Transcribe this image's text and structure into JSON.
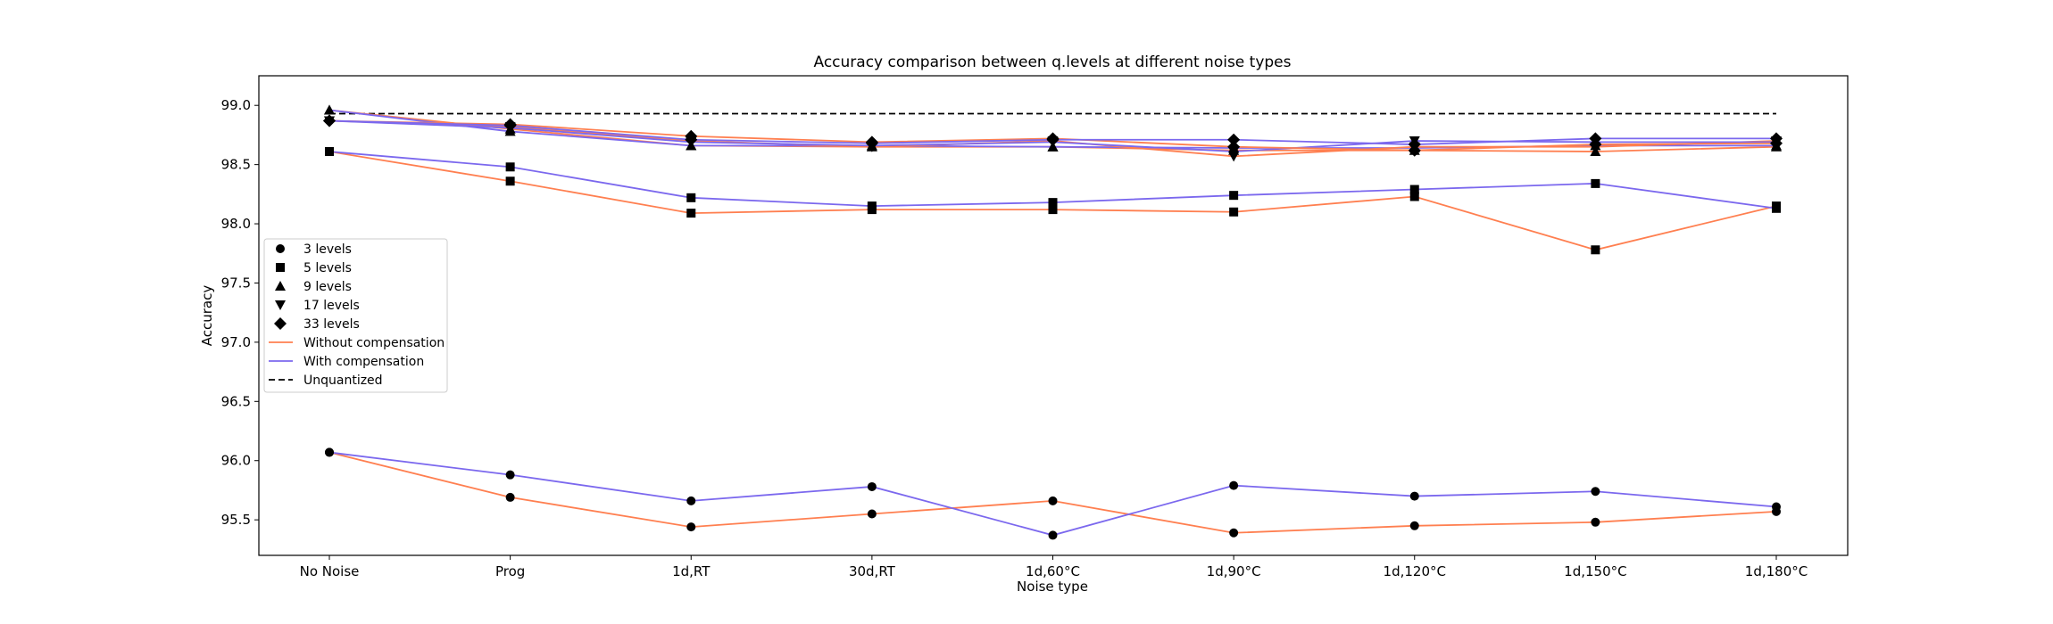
{
  "chart_data": {
    "type": "line",
    "title": "Accuracy comparison between q.levels at different noise types",
    "xlabel": "Noise type",
    "ylabel": "Accuracy",
    "ylim": [
      95.2,
      99.25
    ],
    "yticks": [
      "95.5",
      "96.0",
      "96.5",
      "97.0",
      "97.5",
      "98.0",
      "98.5",
      "99.0"
    ],
    "categories": [
      "No Noise",
      "Prog",
      "1d,RT",
      "30d,RT",
      "1d,60°C",
      "1d,90°C",
      "1d,120°C",
      "1d,150°C",
      "1d,180°C"
    ],
    "grid": false,
    "legend_position": "center-left",
    "colors": {
      "without": "#ff7f50",
      "with": "#7b68ee",
      "unquantized": "#000000",
      "marker": "#000000"
    },
    "legend": [
      {
        "label": "3 levels",
        "kind": "marker",
        "marker": "circle"
      },
      {
        "label": "5 levels",
        "kind": "marker",
        "marker": "square"
      },
      {
        "label": "9 levels",
        "kind": "marker",
        "marker": "triangle-up"
      },
      {
        "label": "17 levels",
        "kind": "marker",
        "marker": "triangle-down"
      },
      {
        "label": "33 levels",
        "kind": "marker",
        "marker": "diamond"
      },
      {
        "label": "Without compensation",
        "kind": "line",
        "style": "without"
      },
      {
        "label": "With compensation",
        "kind": "line",
        "style": "with"
      },
      {
        "label": "Unquantized",
        "kind": "dashed",
        "style": "unquantized"
      }
    ],
    "series": [
      {
        "levels": 3,
        "compensation": "without",
        "marker": "circle",
        "values": [
          96.07,
          95.69,
          95.44,
          95.55,
          95.66,
          95.39,
          95.45,
          95.48,
          95.57
        ]
      },
      {
        "levels": 3,
        "compensation": "with",
        "marker": "circle",
        "values": [
          96.07,
          95.88,
          95.66,
          95.78,
          95.37,
          95.79,
          95.7,
          95.74,
          95.61
        ]
      },
      {
        "levels": 5,
        "compensation": "without",
        "marker": "square",
        "values": [
          98.61,
          98.36,
          98.09,
          98.12,
          98.12,
          98.1,
          98.23,
          97.78,
          98.15
        ]
      },
      {
        "levels": 5,
        "compensation": "with",
        "marker": "square",
        "values": [
          98.61,
          98.48,
          98.22,
          98.15,
          98.18,
          98.24,
          98.29,
          98.34,
          98.13
        ]
      },
      {
        "levels": 9,
        "compensation": "without",
        "marker": "triangle-up",
        "values": [
          98.96,
          98.8,
          98.66,
          98.65,
          98.65,
          98.62,
          98.62,
          98.61,
          98.65
        ]
      },
      {
        "levels": 9,
        "compensation": "with",
        "marker": "triangle-up",
        "values": [
          98.96,
          98.78,
          98.66,
          98.66,
          98.65,
          98.64,
          98.64,
          98.66,
          98.66
        ]
      },
      {
        "levels": 17,
        "compensation": "without",
        "marker": "triangle-down",
        "values": [
          98.87,
          98.82,
          98.7,
          98.65,
          98.7,
          98.57,
          98.65,
          98.65,
          98.7
        ]
      },
      {
        "levels": 17,
        "compensation": "with",
        "marker": "triangle-down",
        "values": [
          98.87,
          98.81,
          98.69,
          98.66,
          98.69,
          98.61,
          98.7,
          98.69,
          98.69
        ]
      },
      {
        "levels": 33,
        "compensation": "without",
        "marker": "diamond",
        "values": [
          98.87,
          98.84,
          98.74,
          98.69,
          98.72,
          98.65,
          98.62,
          98.67,
          98.68
        ]
      },
      {
        "levels": 33,
        "compensation": "with",
        "marker": "diamond",
        "values": [
          98.87,
          98.83,
          98.71,
          98.68,
          98.71,
          98.71,
          98.67,
          98.72,
          98.72
        ]
      }
    ],
    "unquantized": 98.93
  }
}
